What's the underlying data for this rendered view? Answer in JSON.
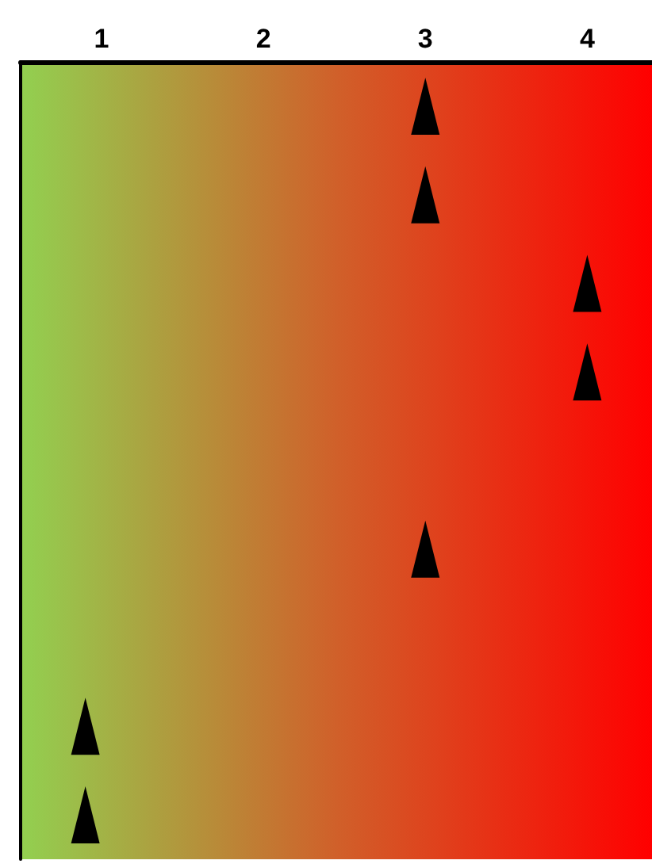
{
  "chart_data": {
    "type": "scatter",
    "orientation": "horizontal",
    "categories": [
      null,
      null,
      null,
      null,
      null,
      null,
      null,
      null,
      null
    ],
    "series": [
      {
        "color": "#000000",
        "values": [
          3,
          3,
          4,
          4,
          null,
          3,
          null,
          0.9,
          0.9
        ]
      }
    ],
    "xlim": [
      0.5,
      4.4
    ],
    "xticks": [
      1,
      2,
      3,
      4
    ],
    "tick_labels": "x",
    "marker": "triangle",
    "grid": false
  }
}
